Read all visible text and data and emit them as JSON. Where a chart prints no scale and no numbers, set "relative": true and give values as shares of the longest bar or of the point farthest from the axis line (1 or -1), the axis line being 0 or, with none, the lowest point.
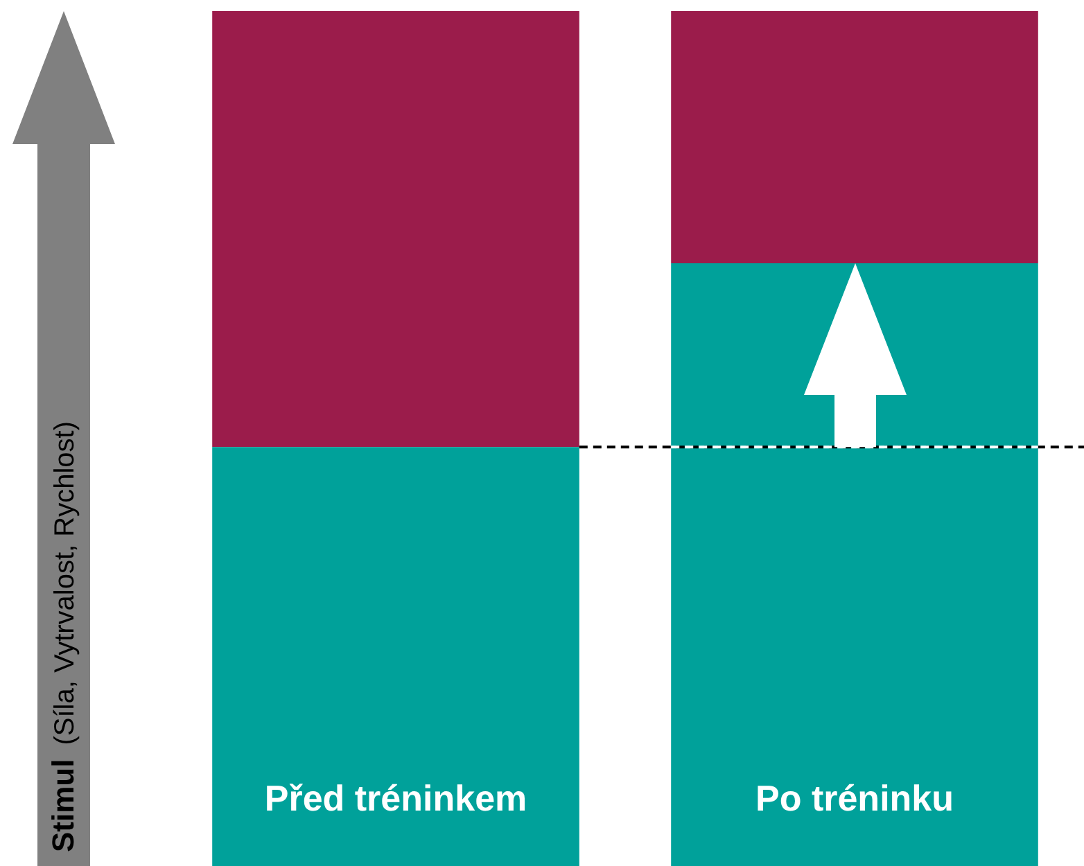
{
  "chart_data": {
    "type": "bar",
    "ylabel": "Stimul (Síla, Vytrvalost, Rychlost)",
    "categories": [
      "Před tréninkem",
      "Po tréninku"
    ],
    "stacked": true,
    "relative": true,
    "legend": false,
    "series": [
      {
        "color": "#00a19a",
        "values": [
          0.49,
          0.705
        ]
      },
      {
        "color": "#9b1c4b",
        "values": [
          0.51,
          0.295
        ]
      }
    ],
    "ref_lines": [
      {
        "axis": "y",
        "value": 0.49,
        "color": "#000000",
        "line_style": "dashed"
      },
      {
        "axis": "y",
        "value": 0.49,
        "color": "#ffffff",
        "line_style": "dashed"
      }
    ]
  }
}
